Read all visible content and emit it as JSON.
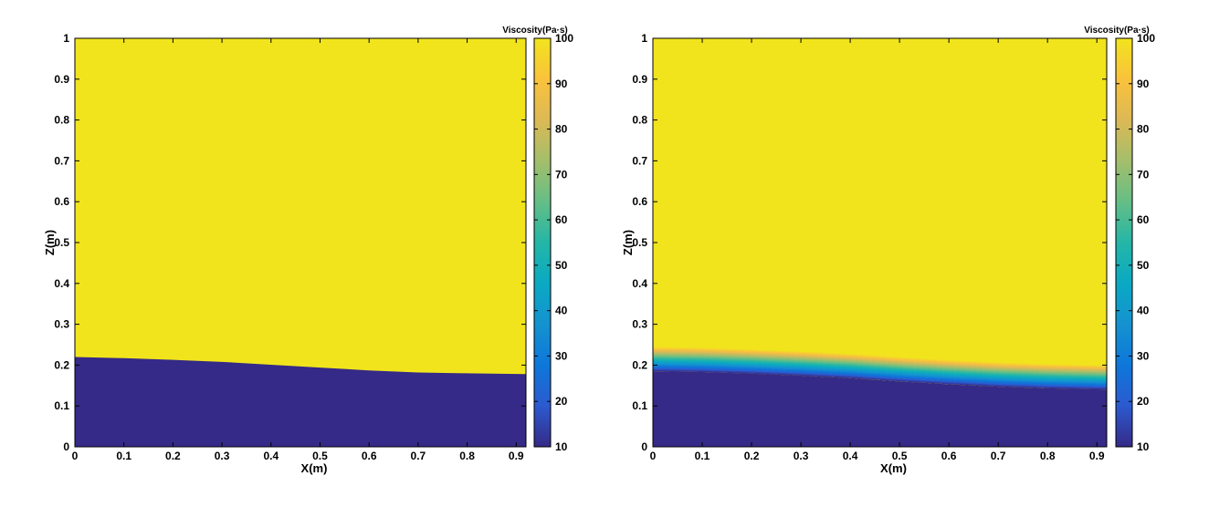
{
  "colors": {
    "low": "#352a87",
    "high": "#f1e41d",
    "colormap": [
      "#352a87",
      "#2c5acf",
      "#0d77da",
      "#1592d0",
      "#0aa9c3",
      "#24b6a6",
      "#65be86",
      "#a4be6b",
      "#dcb955",
      "#fac23c",
      "#f1e41d"
    ]
  },
  "chart_data": [
    {
      "type": "heatmap",
      "xlabel": "X(m)",
      "ylabel": "Z(m)",
      "xlim": [
        0,
        0.92
      ],
      "ylim": [
        0,
        1
      ],
      "xticks": [
        "0",
        "0.1",
        "0.2",
        "0.3",
        "0.4",
        "0.5",
        "0.6",
        "0.7",
        "0.8",
        "0.9"
      ],
      "yticks": [
        "0",
        "0.1",
        "0.2",
        "0.3",
        "0.4",
        "0.5",
        "0.6",
        "0.7",
        "0.8",
        "0.9",
        "1"
      ],
      "colorbar": {
        "label": "Viscosity(Pa·s)",
        "range": [
          10,
          100
        ],
        "ticks": [
          "10",
          "20",
          "30",
          "40",
          "50",
          "60",
          "70",
          "80",
          "90",
          "100"
        ]
      },
      "field": {
        "lower_value": 10,
        "upper_value": 100,
        "interface": {
          "x": [
            0,
            0.1,
            0.2,
            0.3,
            0.4,
            0.5,
            0.6,
            0.7,
            0.8,
            0.92
          ],
          "z": [
            0.22,
            0.217,
            0.213,
            0.208,
            0.201,
            0.194,
            0.187,
            0.182,
            0.18,
            0.178
          ]
        },
        "transition_width": 0
      }
    },
    {
      "type": "heatmap",
      "xlabel": "X(m)",
      "ylabel": "Z(m)",
      "xlim": [
        0,
        0.92
      ],
      "ylim": [
        0,
        1
      ],
      "xticks": [
        "0",
        "0.1",
        "0.2",
        "0.3",
        "0.4",
        "0.5",
        "0.6",
        "0.7",
        "0.8",
        "0.9"
      ],
      "yticks": [
        "0",
        "0.1",
        "0.2",
        "0.3",
        "0.4",
        "0.5",
        "0.6",
        "0.7",
        "0.8",
        "0.9",
        "1"
      ],
      "colorbar": {
        "label": "Viscosity(Pa·s)",
        "range": [
          10,
          100
        ],
        "ticks": [
          "10",
          "20",
          "30",
          "40",
          "50",
          "60",
          "70",
          "80",
          "90",
          "100"
        ]
      },
      "field": {
        "lower_value": 10,
        "upper_value": 100,
        "interface": {
          "x": [
            0,
            0.1,
            0.2,
            0.3,
            0.4,
            0.5,
            0.6,
            0.7,
            0.8,
            0.92
          ],
          "z": [
            0.215,
            0.213,
            0.209,
            0.204,
            0.198,
            0.19,
            0.183,
            0.177,
            0.173,
            0.17
          ]
        },
        "transition_width": 0.06
      }
    }
  ]
}
